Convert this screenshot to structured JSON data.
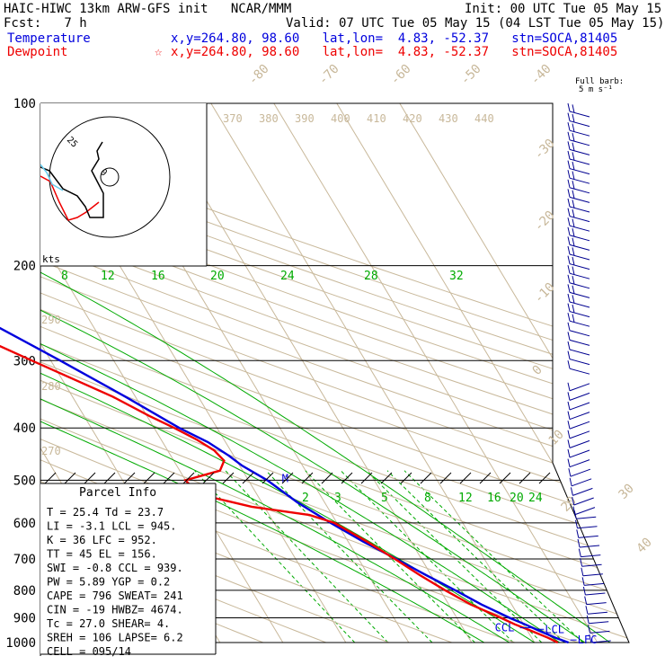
{
  "header": {
    "title_line": "HAIC-HIWC 13km ARW-GFS init   NCAR/MMM",
    "init_line": "Init: 00 UTC Tue 05 May 15",
    "fcst_line": "Fcst:   7 h",
    "valid_line": "Valid: 07 UTC Tue 05 May 15 (04 LST Tue 05 May 15)",
    "temp_name": "Temperature",
    "temp_info": "x,y=264.80, 98.60   lat,lon=  4.83, -52.37   stn=SOCA,81405",
    "dew_name": "Dewpoint",
    "dew_info": "x,y=264.80, 98.60   lat,lon=  4.83, -52.37   stn=SOCA,81405",
    "dew_marker": "☆",
    "full_barb_1": "Full barb:",
    "full_barb_2": "5 m s⁻¹"
  },
  "colors": {
    "temperature": "#0000dd",
    "dewpoint": "#ee0000",
    "isotherm": "#c8b89a",
    "mixing_ratio": "#00aa00",
    "barb": "#000090"
  },
  "chart_data": {
    "type": "line",
    "yscale": "log",
    "ylim": [
      1000,
      100
    ],
    "pressure_labels": [
      "100",
      "200",
      "300",
      "400",
      "500",
      "600",
      "700",
      "800",
      "900",
      "1000"
    ],
    "skewt_temp_labels": [
      "-80",
      "-70",
      "-60",
      "-50",
      "-40",
      "-30",
      "-20",
      "-10",
      "0",
      "10",
      "20",
      "30",
      "40"
    ],
    "theta_labels": [
      "370",
      "380",
      "390",
      "400",
      "410",
      "420",
      "430",
      "440"
    ],
    "theta_side_labels": [
      "290",
      "280",
      "270"
    ],
    "mixing_ratio_labels_upper": [
      "8",
      "12",
      "16",
      "20",
      "24",
      "28",
      "32"
    ],
    "mixing_ratio_labels_lower": [
      "2",
      "3",
      "5",
      "8",
      "12",
      "16",
      "20",
      "24"
    ],
    "series": [
      {
        "name": "Temperature",
        "points": [
          [
            1000,
            25.4
          ],
          [
            980,
            23.8
          ],
          [
            950,
            21.8
          ],
          [
            925,
            20.2
          ],
          [
            900,
            18.4
          ],
          [
            850,
            15.2
          ],
          [
            800,
            12.4
          ],
          [
            750,
            9.2
          ],
          [
            700,
            6.0
          ],
          [
            650,
            2.4
          ],
          [
            600,
            -1.0
          ],
          [
            550,
            -4.3
          ],
          [
            500,
            -7.0
          ],
          [
            470,
            -9.6
          ],
          [
            450,
            -10.8
          ],
          [
            425,
            -12.8
          ],
          [
            400,
            -16.0
          ],
          [
            350,
            -21.6
          ],
          [
            300,
            -28.5
          ],
          [
            250,
            -37.0
          ],
          [
            200,
            -47.6
          ],
          [
            170,
            -55.0
          ],
          [
            150,
            -61.0
          ],
          [
            130,
            -68.0
          ],
          [
            110,
            -73.0
          ],
          [
            100,
            -76.0
          ]
        ]
      },
      {
        "name": "Dewpoint",
        "points": [
          [
            1000,
            23.7
          ],
          [
            980,
            22.6
          ],
          [
            950,
            20.5
          ],
          [
            925,
            18.6
          ],
          [
            900,
            17.0
          ],
          [
            850,
            13.5
          ],
          [
            800,
            10.8
          ],
          [
            750,
            8.2
          ],
          [
            700,
            5.8
          ],
          [
            650,
            3.0
          ],
          [
            600,
            -0.4
          ],
          [
            580,
            -3.6
          ],
          [
            560,
            -12.0
          ],
          [
            540,
            -17.0
          ],
          [
            520,
            -19.5
          ],
          [
            500,
            -20.0
          ],
          [
            480,
            -13.6
          ],
          [
            460,
            -12.0
          ],
          [
            440,
            -12.6
          ],
          [
            420,
            -14.4
          ],
          [
            400,
            -16.8
          ],
          [
            380,
            -19.6
          ],
          [
            350,
            -23.6
          ],
          [
            300,
            -33.0
          ],
          [
            275,
            -38.2
          ],
          [
            250,
            -42.8
          ],
          [
            225,
            -47.2
          ],
          [
            200,
            -54.0
          ],
          [
            175,
            -62.0
          ],
          [
            150,
            -70.0
          ],
          [
            130,
            -78.0
          ],
          [
            110,
            -84.0
          ],
          [
            100,
            -86.5
          ]
        ]
      }
    ],
    "level_labels": [
      {
        "text": "EL",
        "p": 156,
        "color": "blue"
      },
      {
        "text": "M",
        "p": 496,
        "color": "blue"
      },
      {
        "text": "CCL",
        "p": 939,
        "color": "blue"
      },
      {
        "text": "LCL",
        "p": 945,
        "color": "blue"
      },
      {
        "text": "LFC",
        "p": 952,
        "color": "blue"
      }
    ],
    "hodograph": {
      "ring_label": "25",
      "kts_label": "kts",
      "center_label": "0"
    },
    "wind_barbs": "5 m/s full barb, 100-1000 hPa"
  },
  "parcel_info": {
    "title": "Parcel Info",
    "rows": [
      "T   =   25.4  Td =  23.7",
      "LI  =   -3.1  LCL =  945.",
      "K   =     36  LFC =  952.",
      "TT  =     45  EL  =  156.",
      "SWI =   -0.8  CCL =  939.",
      "PW  =   5.89  YGP =   0.2",
      "CAPE =   796  SWEAT=  241",
      "CIN  =   -19  HWBZ= 4674.",
      "Tc  =   27.0  SHEAR=   4.",
      "SREH =   106  LAPSE=  6.2",
      "CELL = 095/14"
    ]
  }
}
